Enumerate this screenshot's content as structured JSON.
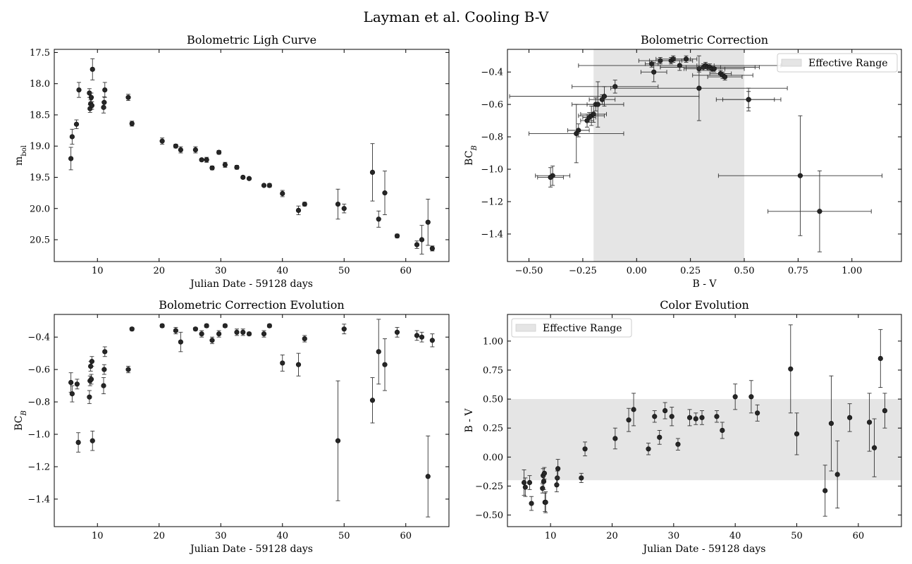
{
  "figure": {
    "title": "Layman et al. Cooling B-V"
  },
  "chart_data": [
    {
      "type": "scatter",
      "title": "Bolometric Ligh Curve",
      "xlabel": "Julian Date - 59128 days",
      "ylabel": "m_bol",
      "xlim": [
        3,
        67
      ],
      "ylim": [
        20.85,
        17.45
      ],
      "y_inverted": true,
      "xticks": [
        10,
        20,
        30,
        40,
        50,
        60
      ],
      "yticks": [
        17.5,
        18.0,
        18.5,
        19.0,
        19.5,
        20.0,
        20.5
      ],
      "ytick_labels": [
        "17.5",
        "18.0",
        "18.5",
        "19.0",
        "19.5",
        "20.0",
        "20.5"
      ],
      "x": [
        5.7,
        5.9,
        6.6,
        7.0,
        8.7,
        8.8,
        8.9,
        9.0,
        9.1,
        9.2,
        11.0,
        11.1,
        11.2,
        15.0,
        15.6,
        20.5,
        22.7,
        23.5,
        25.9,
        26.9,
        27.7,
        28.6,
        29.7,
        30.7,
        32.6,
        33.6,
        34.6,
        37.0,
        37.9,
        40.0,
        42.6,
        43.6,
        49.0,
        50.0,
        54.6,
        55.6,
        56.6,
        58.6,
        61.8,
        62.6,
        63.6,
        64.3
      ],
      "y": [
        19.2,
        18.85,
        18.65,
        18.1,
        18.15,
        18.4,
        18.32,
        18.22,
        18.35,
        17.77,
        18.38,
        18.3,
        18.1,
        18.22,
        18.64,
        18.92,
        19.0,
        19.06,
        19.06,
        19.22,
        19.22,
        19.35,
        19.1,
        19.3,
        19.34,
        19.5,
        19.52,
        19.63,
        19.63,
        19.76,
        20.03,
        19.93,
        19.93,
        20.0,
        19.42,
        20.17,
        19.75,
        20.44,
        20.58,
        20.5,
        20.22,
        20.64
      ],
      "yerr": [
        0.18,
        0.12,
        0.07,
        0.12,
        0.07,
        0.06,
        0.06,
        0.07,
        0.06,
        0.17,
        0.09,
        0.09,
        0.12,
        0.05,
        0.04,
        0.05,
        0.03,
        0.05,
        0.05,
        0.02,
        0.04,
        0.03,
        0.03,
        0.04,
        0.03,
        0.02,
        0.02,
        0.02,
        0.03,
        0.05,
        0.07,
        0.03,
        0.24,
        0.07,
        0.46,
        0.13,
        0.35,
        0.03,
        0.06,
        0.23,
        0.37,
        0.04
      ]
    },
    {
      "type": "scatter",
      "title": "Bolometric Correction",
      "xlabel": "B - V",
      "ylabel": "BC_B",
      "xlim": [
        -0.6,
        1.23
      ],
      "ylim": [
        -1.57,
        -0.26
      ],
      "xticks": [
        -0.5,
        -0.25,
        0.0,
        0.25,
        0.5,
        0.75,
        1.0
      ],
      "xtick_labels": [
        "−0.50",
        "−0.25",
        "0.00",
        "0.25",
        "0.50",
        "0.75",
        "1.00"
      ],
      "yticks": [
        -1.4,
        -1.2,
        -1.0,
        -0.8,
        -0.6,
        -0.4
      ],
      "ytick_labels": [
        "−1.4",
        "−1.2",
        "−1.0",
        "−0.8",
        "−0.6",
        "−0.4"
      ],
      "shaded_range": {
        "from": -0.2,
        "to": 0.5
      },
      "legend": {
        "label": "Effective Range",
        "loc": "upper right"
      },
      "x": [
        -0.39,
        -0.4,
        -0.28,
        -0.27,
        -0.23,
        -0.22,
        -0.21,
        -0.2,
        -0.19,
        -0.18,
        -0.16,
        -0.15,
        -0.1,
        0.07,
        0.08,
        0.11,
        0.16,
        0.17,
        0.2,
        0.23,
        0.29,
        0.29,
        0.31,
        0.32,
        0.33,
        0.34,
        0.35,
        0.36,
        0.39,
        0.4,
        0.41,
        0.52,
        0.52,
        0.76,
        0.85
      ],
      "y": [
        -1.04,
        -1.05,
        -0.78,
        -0.76,
        -0.7,
        -0.68,
        -0.67,
        -0.66,
        -0.6,
        -0.6,
        -0.57,
        -0.55,
        -0.49,
        -0.35,
        -0.4,
        -0.33,
        -0.33,
        -0.32,
        -0.36,
        -0.32,
        -0.5,
        -0.38,
        -0.37,
        -0.36,
        -0.37,
        -0.37,
        -0.38,
        -0.38,
        -0.41,
        -0.42,
        -0.43,
        -0.57,
        -0.57,
        -1.04,
        -1.26
      ],
      "xerr": [
        0.08,
        0.06,
        0.22,
        0.05,
        0.03,
        0.03,
        0.06,
        0.06,
        0.04,
        0.12,
        0.06,
        0.44,
        0.2,
        0.03,
        0.06,
        0.1,
        0.1,
        0.08,
        0.47,
        0.05,
        0.41,
        0.06,
        0.08,
        0.04,
        0.22,
        0.23,
        0.06,
        0.14,
        0.05,
        0.14,
        0.08,
        0.12,
        0.15,
        0.38,
        0.24
      ],
      "yerr": [
        0.06,
        0.06,
        0.18,
        0.04,
        0.04,
        0.03,
        0.06,
        0.05,
        0.04,
        0.14,
        0.03,
        0.06,
        0.04,
        0.02,
        0.06,
        0.02,
        0.02,
        0.02,
        0.03,
        0.02,
        0.2,
        0.02,
        0.02,
        0.02,
        0.02,
        0.02,
        0.02,
        0.02,
        0.02,
        0.02,
        0.02,
        0.07,
        0.05,
        0.37,
        0.25
      ]
    },
    {
      "type": "scatter",
      "title": "Bolometric Correction Evolution",
      "xlabel": "Julian Date - 59128 days",
      "ylabel": "BC_B",
      "xlim": [
        3,
        67
      ],
      "ylim": [
        -1.57,
        -0.26
      ],
      "xticks": [
        10,
        20,
        30,
        40,
        50,
        60
      ],
      "yticks": [
        -1.4,
        -1.2,
        -1.0,
        -0.8,
        -0.6,
        -0.4
      ],
      "ytick_labels": [
        "−1.4",
        "−1.2",
        "−1.0",
        "−0.8",
        "−0.6",
        "−0.4"
      ],
      "x": [
        5.7,
        5.9,
        6.7,
        6.9,
        8.7,
        8.8,
        8.9,
        9.0,
        9.1,
        9.2,
        11.0,
        11.1,
        11.2,
        15.0,
        15.6,
        20.5,
        22.7,
        23.5,
        25.9,
        26.9,
        27.7,
        28.6,
        29.7,
        30.7,
        32.6,
        33.6,
        34.6,
        37.0,
        37.9,
        40.0,
        42.6,
        43.6,
        49.0,
        50.0,
        54.6,
        55.6,
        56.6,
        58.6,
        61.8,
        62.6,
        63.6,
        64.3
      ],
      "y": [
        -0.68,
        -0.75,
        -0.69,
        -1.05,
        -0.77,
        -0.67,
        -0.58,
        -0.66,
        -0.55,
        -1.04,
        -0.7,
        -0.6,
        -0.49,
        -0.6,
        -0.35,
        -0.33,
        -0.36,
        -0.43,
        -0.35,
        -0.38,
        -0.33,
        -0.42,
        -0.38,
        -0.33,
        -0.37,
        -0.37,
        -0.38,
        -0.38,
        -0.33,
        -0.56,
        -0.57,
        -0.41,
        -1.04,
        -0.35,
        -0.79,
        -0.49,
        -0.57,
        -0.37,
        -0.39,
        -0.4,
        -1.26,
        -0.42
      ],
      "yerr": [
        0.06,
        0.05,
        0.03,
        0.06,
        0.04,
        0.03,
        0.03,
        0.03,
        0.03,
        0.06,
        0.05,
        0.03,
        0.03,
        0.02,
        0.01,
        0.01,
        0.02,
        0.06,
        0.01,
        0.02,
        0.01,
        0.02,
        0.02,
        0.01,
        0.02,
        0.02,
        0.01,
        0.02,
        0.01,
        0.05,
        0.07,
        0.02,
        0.37,
        0.03,
        0.14,
        0.2,
        0.16,
        0.03,
        0.03,
        0.03,
        0.25,
        0.04
      ]
    },
    {
      "type": "scatter",
      "title": "Color Evolution",
      "xlabel": "Julian Date - 59128 days",
      "ylabel": "B - V",
      "xlim": [
        3,
        67
      ],
      "ylim": [
        -0.6,
        1.23
      ],
      "xticks": [
        10,
        20,
        30,
        40,
        50,
        60
      ],
      "yticks": [
        -0.5,
        -0.25,
        0.0,
        0.25,
        0.5,
        0.75,
        1.0
      ],
      "ytick_labels": [
        "−0.50",
        "−0.25",
        "0.00",
        "0.25",
        "0.50",
        "0.75",
        "1.00"
      ],
      "shaded_range": {
        "from": -0.2,
        "to": 0.5
      },
      "legend": {
        "label": "Effective Range",
        "loc": "upper left"
      },
      "x": [
        5.7,
        5.9,
        6.6,
        6.9,
        8.7,
        8.8,
        8.9,
        9.0,
        9.1,
        9.2,
        11.0,
        11.1,
        11.2,
        15.0,
        15.6,
        20.5,
        22.7,
        23.5,
        25.9,
        26.9,
        27.7,
        28.6,
        29.7,
        30.7,
        32.6,
        33.6,
        34.6,
        37.0,
        37.9,
        40.0,
        42.6,
        43.6,
        49.0,
        50.0,
        54.6,
        55.6,
        56.6,
        58.6,
        61.8,
        62.6,
        63.6,
        64.3
      ],
      "y": [
        -0.22,
        -0.26,
        -0.22,
        -0.4,
        -0.27,
        -0.16,
        -0.21,
        -0.14,
        -0.39,
        -0.39,
        -0.24,
        -0.18,
        -0.1,
        -0.18,
        0.07,
        0.16,
        0.32,
        0.41,
        0.07,
        0.35,
        0.17,
        0.4,
        0.35,
        0.11,
        0.34,
        0.33,
        0.34,
        0.35,
        0.23,
        0.52,
        0.52,
        0.38,
        0.76,
        0.2,
        -0.29,
        0.29,
        -0.15,
        0.34,
        0.3,
        0.08,
        0.85,
        0.4
      ],
      "yerr": [
        0.11,
        0.08,
        0.06,
        0.06,
        0.04,
        0.06,
        0.07,
        0.05,
        0.08,
        0.09,
        0.06,
        0.06,
        0.08,
        0.04,
        0.06,
        0.09,
        0.1,
        0.14,
        0.05,
        0.05,
        0.06,
        0.07,
        0.08,
        0.05,
        0.07,
        0.05,
        0.06,
        0.05,
        0.07,
        0.11,
        0.14,
        0.07,
        0.38,
        0.18,
        0.22,
        0.41,
        0.29,
        0.12,
        0.25,
        0.25,
        0.25,
        0.15
      ]
    }
  ]
}
